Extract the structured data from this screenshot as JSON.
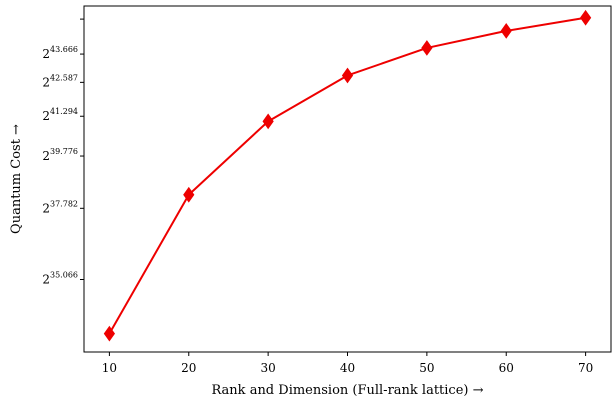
{
  "chart_data": {
    "type": "line",
    "xlabel": "Rank and Dimension (Full-rank lattice) →",
    "ylabel": "Quantum Cost →",
    "x": [
      10,
      20,
      30,
      40,
      50,
      60,
      70
    ],
    "series": [
      {
        "values": [
          33.0,
          38.3,
          41.1,
          42.85,
          43.9,
          44.55,
          45.05
        ],
        "color": "#ee0000",
        "marker": "diamond"
      }
    ],
    "xlim": [
      6.8,
      73.2
    ],
    "ylim": [
      32.3,
      45.5
    ],
    "xticks": [
      10,
      20,
      30,
      40,
      50,
      60,
      70
    ],
    "yticks": [
      {
        "value": 35.066,
        "base": "2",
        "exp": "35.066"
      },
      {
        "value": 37.782,
        "base": "2",
        "exp": "37.782"
      },
      {
        "value": 39.776,
        "base": "2",
        "exp": "39.776"
      },
      {
        "value": 41.294,
        "base": "2",
        "exp": "41.294"
      },
      {
        "value": 42.587,
        "base": "2",
        "exp": "42.587"
      },
      {
        "value": 43.666,
        "base": "2",
        "exp": "43.666"
      }
    ],
    "grid": false
  }
}
